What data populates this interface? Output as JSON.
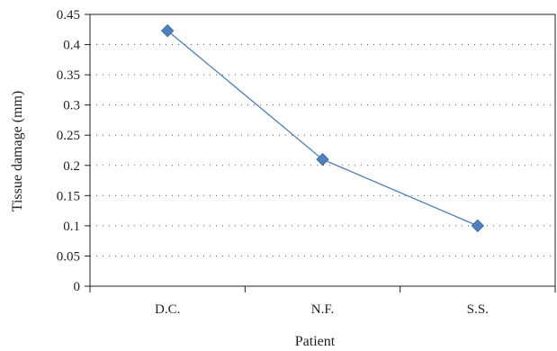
{
  "chart_data": {
    "type": "line",
    "title": "",
    "xlabel": "Patient",
    "ylabel": "Tissue damage (mm)",
    "categories": [
      "D.C.",
      "N.F.",
      "S.S."
    ],
    "series": [
      {
        "values": [
          0.423,
          0.21,
          0.1
        ]
      }
    ],
    "ylim": [
      0,
      0.45
    ],
    "yticks": [
      "0",
      "0.05",
      "0.1",
      "0.15",
      "0.2",
      "0.25",
      "0.3",
      "0.35",
      "0.4",
      "0.45"
    ],
    "grid": "horizontal dotted",
    "legend": "none",
    "colors": {
      "line": "#4a7ebb",
      "marker": "#4f81bd",
      "marker_edge": "#3c6da3",
      "grid": "#555555",
      "axis": "#231f20"
    }
  }
}
